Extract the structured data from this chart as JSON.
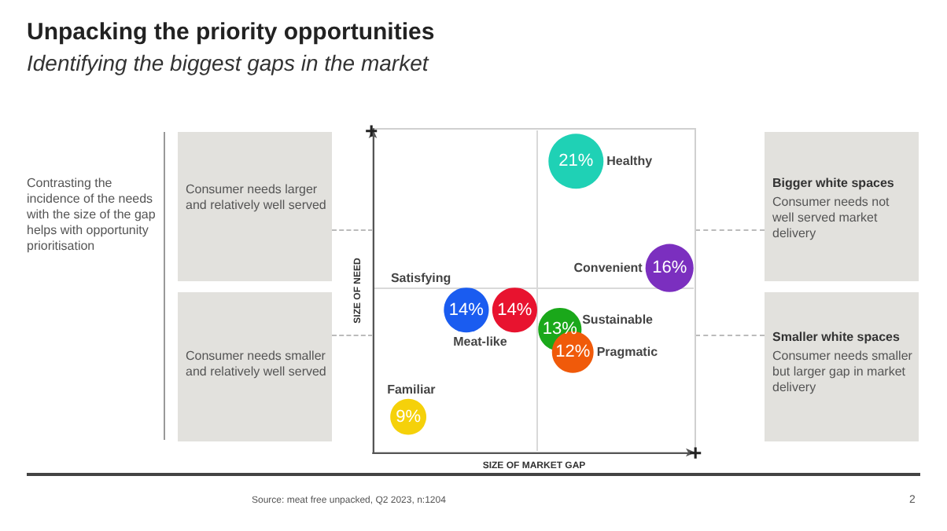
{
  "chart_data": {
    "type": "other",
    "title": "Unpacking the priority opportunities",
    "subtitle": "Identifying the biggest gaps in the market",
    "xlabel": "SIZE OF MARKET GAP",
    "ylabel": "SIZE OF NEED",
    "categories": [
      "Healthy",
      "Convenient",
      "Satisfying",
      "Meat-like",
      "Sustainable",
      "Pragmatic",
      "Familiar"
    ],
    "values": [
      21,
      16,
      14,
      14,
      13,
      12,
      9
    ],
    "value_labels": [
      "21%",
      "16%",
      "14%",
      "14%",
      "13%",
      "12%",
      "9%"
    ],
    "colors": [
      "#1fd1b5",
      "#7b2fbf",
      "#1a5cf0",
      "#e8132f",
      "#1aa81a",
      "#f05a0a",
      "#f5d10a"
    ],
    "annotations": [
      "Contrasting the incidence of the needs with the size of the gap helps with opportunity prioritisation",
      "Consumer needs larger and relatively well served",
      "Consumer needs smaller and relatively well served",
      "Bigger white spaces",
      "Consumer needs not well served market delivery",
      "Smaller white spaces",
      "Consumer needs smaller but larger gap in market delivery",
      "+",
      "+",
      "Source: meat free unpacked, Q2 2023, n:1204",
      "2"
    ]
  }
}
